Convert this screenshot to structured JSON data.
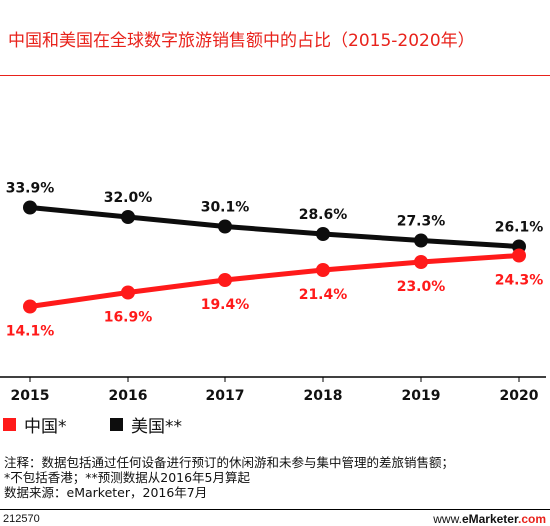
{
  "title": "中国和美国在全球数字旅游销售额中的占比（2015-2020年）",
  "colors": {
    "accent": "#e8221b",
    "china": "#ff1a1a",
    "us": "#0d0d0d",
    "axis": "#000000"
  },
  "chart_data": {
    "type": "line",
    "x": [
      "2015",
      "2016",
      "2017",
      "2018",
      "2019",
      "2020"
    ],
    "series": [
      {
        "name": "中国*",
        "values": [
          14.1,
          16.9,
          19.4,
          21.4,
          23.0,
          24.3
        ],
        "labels": [
          "14.1%",
          "16.9%",
          "19.4%",
          "21.4%",
          "23.0%",
          "24.3%"
        ],
        "color": "#ff1a1a"
      },
      {
        "name": "美国**",
        "values": [
          33.9,
          32.0,
          30.1,
          28.6,
          27.3,
          26.1
        ],
        "labels": [
          "33.9%",
          "32.0%",
          "30.1%",
          "28.6%",
          "27.3%",
          "26.1%"
        ],
        "color": "#0d0d0d"
      }
    ],
    "ylim": [
      0,
      45
    ],
    "grid": false,
    "legend_position": "bottom-left"
  },
  "legend": [
    {
      "label": "中国*",
      "color": "#ff1a1a"
    },
    {
      "label": "美国**",
      "color": "#0d0d0d"
    }
  ],
  "footnotes": {
    "line1": "注释：数据包括通过任何设备进行预订的休闲游和未参与集中管理的差旅销售额；",
    "line2": "*不包括香港；**预测数据从2016年5月算起",
    "line3": "数据来源：eMarketer，2016年7月"
  },
  "footer": {
    "id": "212570",
    "site_prefix": "www.",
    "site_brand": "eMarketer",
    "site_suffix": ".com"
  }
}
